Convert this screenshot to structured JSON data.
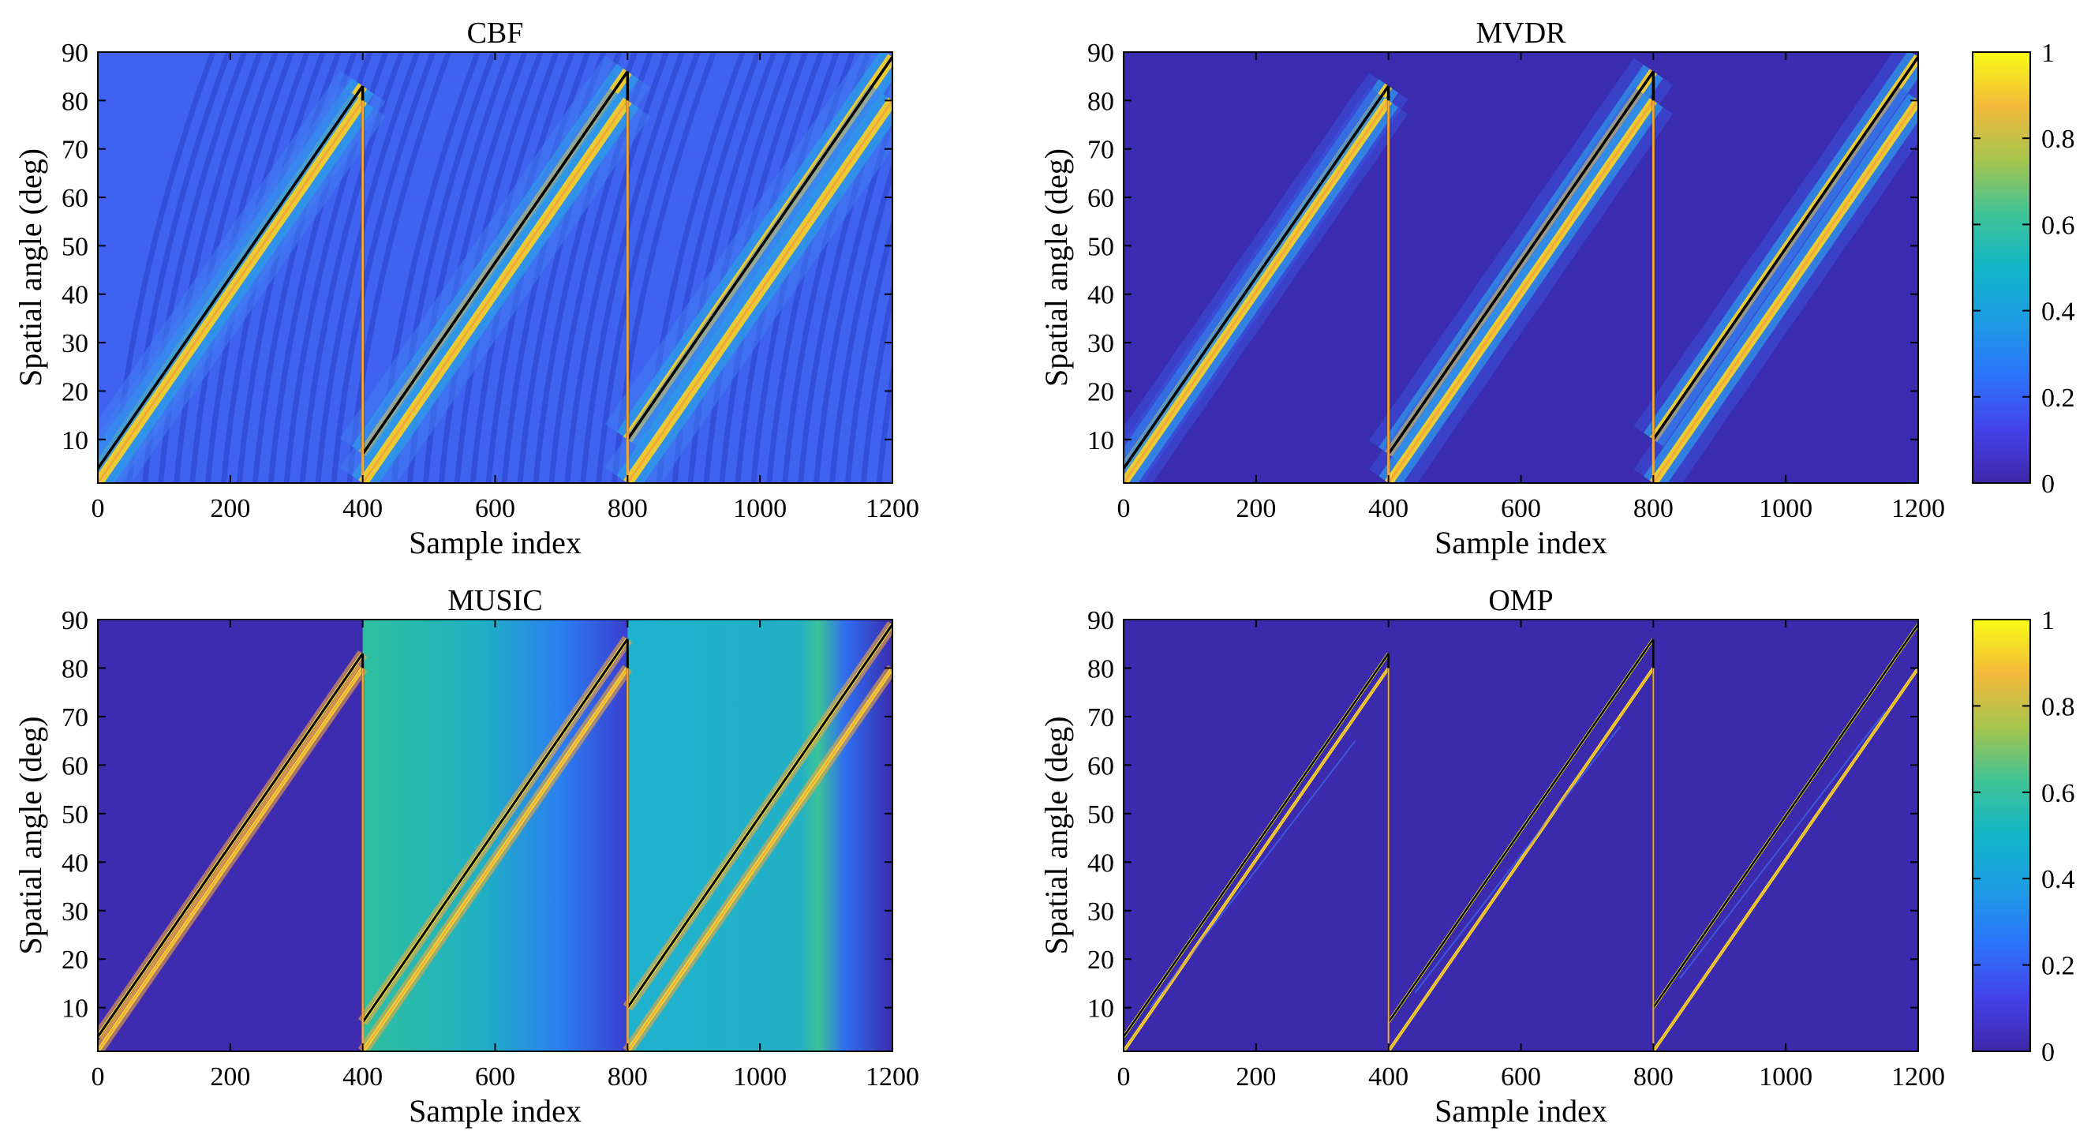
{
  "chart_data": [
    {
      "type": "heatmap",
      "title": "CBF",
      "xlabel": "Sample index",
      "ylabel": "Spatial angle (deg)",
      "xlim": [
        0,
        1200
      ],
      "ylim": [
        1,
        90
      ],
      "xticks": [
        "0",
        "200",
        "400",
        "600",
        "800",
        "1000",
        "1200"
      ],
      "yticks": [
        "10",
        "20",
        "30",
        "40",
        "50",
        "60",
        "70",
        "80",
        "90"
      ],
      "segments": [
        {
          "x": [
            0,
            400
          ],
          "source1_deg": [
            4,
            83
          ],
          "source2_deg": [
            1,
            80
          ]
        },
        {
          "x": [
            400,
            800
          ],
          "source1_deg": [
            7,
            86
          ],
          "source2_deg": [
            1,
            80
          ]
        },
        {
          "x": [
            800,
            1200
          ],
          "source1_deg": [
            10,
            89
          ],
          "source2_deg": [
            1,
            80
          ]
        }
      ],
      "intensity_range": [
        0,
        1
      ]
    },
    {
      "type": "heatmap",
      "title": "MVDR",
      "xlabel": "Sample index",
      "ylabel": "Spatial angle (deg)",
      "xlim": [
        0,
        1200
      ],
      "ylim": [
        1,
        90
      ],
      "xticks": [
        "0",
        "200",
        "400",
        "600",
        "800",
        "1000",
        "1200"
      ],
      "yticks": [
        "10",
        "20",
        "30",
        "40",
        "50",
        "60",
        "70",
        "80",
        "90"
      ],
      "segments": [
        {
          "x": [
            0,
            400
          ],
          "source1_deg": [
            4,
            83
          ],
          "source2_deg": [
            1,
            80
          ]
        },
        {
          "x": [
            400,
            800
          ],
          "source1_deg": [
            7,
            86
          ],
          "source2_deg": [
            1,
            80
          ]
        },
        {
          "x": [
            800,
            1200
          ],
          "source1_deg": [
            10,
            89
          ],
          "source2_deg": [
            1,
            80
          ]
        }
      ],
      "colorbar": {
        "ticks": [
          "0",
          "0.2",
          "0.4",
          "0.6",
          "0.8",
          "1"
        ],
        "range": [
          0,
          1
        ]
      }
    },
    {
      "type": "heatmap",
      "title": "MUSIC",
      "xlabel": "Sample index",
      "ylabel": "Spatial angle (deg)",
      "xlim": [
        0,
        1200
      ],
      "ylim": [
        1,
        90
      ],
      "xticks": [
        "0",
        "200",
        "400",
        "600",
        "800",
        "1000",
        "1200"
      ],
      "yticks": [
        "10",
        "20",
        "30",
        "40",
        "50",
        "60",
        "70",
        "80",
        "90"
      ],
      "segments": [
        {
          "x": [
            0,
            400
          ],
          "source1_deg": [
            4,
            83
          ],
          "source2_deg": [
            1,
            80
          ]
        },
        {
          "x": [
            400,
            800
          ],
          "source1_deg": [
            7,
            86
          ],
          "source2_deg": [
            1,
            80
          ]
        },
        {
          "x": [
            800,
            1200
          ],
          "source1_deg": [
            10,
            89
          ],
          "source2_deg": [
            1,
            80
          ]
        }
      ],
      "intensity_range": [
        0,
        1
      ]
    },
    {
      "type": "heatmap",
      "title": "OMP",
      "xlabel": "Sample index",
      "ylabel": "Spatial angle (deg)",
      "xlim": [
        0,
        1200
      ],
      "ylim": [
        1,
        90
      ],
      "xticks": [
        "0",
        "200",
        "400",
        "600",
        "800",
        "1000",
        "1200"
      ],
      "yticks": [
        "10",
        "20",
        "30",
        "40",
        "50",
        "60",
        "70",
        "80",
        "90"
      ],
      "segments": [
        {
          "x": [
            0,
            400
          ],
          "source1_deg": [
            4,
            83
          ],
          "source2_deg": [
            1,
            80
          ]
        },
        {
          "x": [
            400,
            800
          ],
          "source1_deg": [
            7,
            86
          ],
          "source2_deg": [
            1,
            80
          ]
        },
        {
          "x": [
            800,
            1200
          ],
          "source1_deg": [
            10,
            89
          ],
          "source2_deg": [
            1,
            80
          ]
        }
      ],
      "colorbar": {
        "ticks": [
          "0",
          "0.2",
          "0.4",
          "0.6",
          "0.8",
          "1"
        ],
        "range": [
          0,
          1
        ]
      }
    }
  ],
  "colors": {
    "colormap_low": "#3d26a8",
    "colormap_mid": "#2ab8b3",
    "colormap_high": "#f9fb0e",
    "true_source_1": "#000000",
    "true_source_2": "#f2a93b"
  }
}
